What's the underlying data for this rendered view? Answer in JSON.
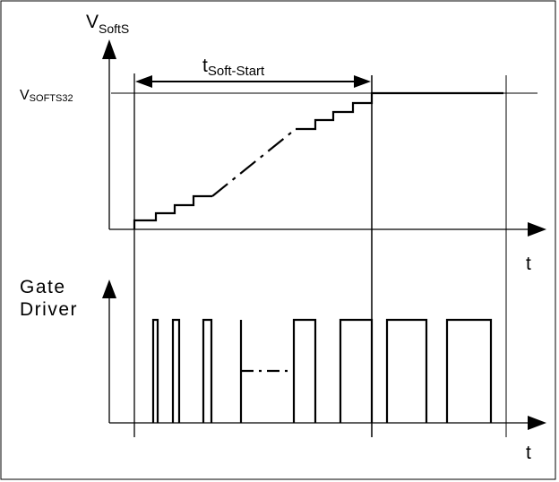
{
  "diagram": {
    "top_axis": {
      "y_label_main": "V",
      "y_label_sub": "SoftS",
      "x_label": "t"
    },
    "bottom_axis": {
      "y_label_line1": "Gate",
      "y_label_line2": "Driver",
      "x_label": "t"
    },
    "level_label_main": "V",
    "level_label_sub": "SOFTS32",
    "duration_label_main": "t",
    "duration_label_sub": "Soft-Start"
  }
}
